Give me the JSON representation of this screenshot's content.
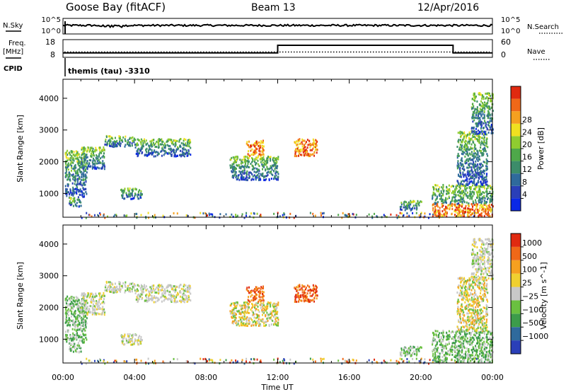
{
  "header": {
    "station": "Goose Bay (fitACF)",
    "beam": "Beam 13",
    "date": "12/Apr/2016"
  },
  "top_panels": {
    "nsky_label": "N.Sky",
    "nsky_ticks": [
      "10^5",
      "10^0"
    ],
    "nsearch_label": "N.Search",
    "nsearch_ticks": [
      "10^5",
      "10^0"
    ],
    "freq_label": "Freq.",
    "freq_unit": "[MHz]",
    "freq_ticks": [
      18,
      8
    ],
    "nave_label": "Nave",
    "nave_ticks": [
      60,
      0
    ],
    "cpid_label": "CPID",
    "cpid_value": "themis (tau) -3310"
  },
  "chart_data": [
    {
      "type": "heatmap",
      "name": "power",
      "ylabel": "Slant Range [km]",
      "yticks": [
        1000,
        2000,
        3000,
        4000
      ],
      "ylim": [
        250,
        4600
      ],
      "colorbar_label": "Power [dB]",
      "colorbar_ticks": [
        "4",
        "8",
        "12",
        "16",
        "20",
        "24",
        "28"
      ],
      "colors": [
        "#0a28e6",
        "#2a3fb8",
        "#2f6a9c",
        "#3c8c6a",
        "#4ea84a",
        "#8fcc30",
        "#f0e020",
        "#f5a020",
        "#f06818",
        "#e02a10"
      ]
    },
    {
      "type": "heatmap",
      "name": "velocity",
      "ylabel": "Slant Range [km]",
      "yticks": [
        1000,
        2000,
        3000,
        4000
      ],
      "ylim": [
        250,
        4600
      ],
      "colorbar_label": "Velocity [m s^-1]",
      "colorbar_ticks": [
        "1000",
        "500",
        "100",
        "25",
        "−25",
        "−100",
        "−500",
        "−1000"
      ],
      "colors": [
        "#2a3fb8",
        "#2f6a9c",
        "#3c9c4a",
        "#6ac040",
        "#c8c8c8",
        "#f0d030",
        "#f5a020",
        "#f06818",
        "#e02a10"
      ],
      "xlabel": "Time UT",
      "xticks": [
        "00:00",
        "04:00",
        "08:00",
        "12:00",
        "16:00",
        "20:00",
        "00:00"
      ],
      "xlim_hours": [
        0,
        24
      ]
    }
  ],
  "tracks": {
    "freq_mhz": [
      {
        "t0": 0.0,
        "t1": 12.0,
        "v": 10.5
      },
      {
        "t0": 12.0,
        "t1": 21.8,
        "v": 14.8
      },
      {
        "t0": 21.8,
        "t1": 24.0,
        "v": 10.5
      }
    ],
    "nave_level": 18,
    "nsky_level": 0.55
  },
  "echo_regions": [
    {
      "t0": 0.1,
      "t1": 1.3,
      "r0": 900,
      "r1": 2400,
      "v": "green"
    },
    {
      "t0": 0.3,
      "t1": 1.0,
      "r0": 600,
      "r1": 900,
      "v": "green"
    },
    {
      "t0": 1.0,
      "t1": 2.3,
      "r0": 1800,
      "r1": 2500,
      "v": "grey"
    },
    {
      "t0": 2.3,
      "t1": 4.0,
      "r0": 2500,
      "r1": 2850,
      "v": "grey"
    },
    {
      "t0": 4.0,
      "t1": 7.1,
      "r0": 2200,
      "r1": 2750,
      "v": "grey"
    },
    {
      "t0": 3.2,
      "t1": 4.4,
      "r0": 850,
      "r1": 1200,
      "v": "grey"
    },
    {
      "t0": 9.3,
      "t1": 12.0,
      "r0": 1450,
      "r1": 2200,
      "v": "orange"
    },
    {
      "t0": 10.2,
      "t1": 11.2,
      "r0": 2200,
      "r1": 2700,
      "v": "red"
    },
    {
      "t0": 12.9,
      "t1": 14.2,
      "r0": 2200,
      "r1": 2750,
      "v": "red"
    },
    {
      "t0": 18.8,
      "t1": 20.0,
      "r0": 500,
      "r1": 800,
      "v": "green"
    },
    {
      "t0": 20.6,
      "t1": 24.0,
      "r0": 300,
      "r1": 1300,
      "v": "green"
    },
    {
      "t0": 22.0,
      "t1": 23.7,
      "r0": 1300,
      "r1": 3000,
      "v": "orange"
    },
    {
      "t0": 22.8,
      "t1": 24.0,
      "r0": 2900,
      "r1": 4200,
      "v": "grey"
    }
  ]
}
